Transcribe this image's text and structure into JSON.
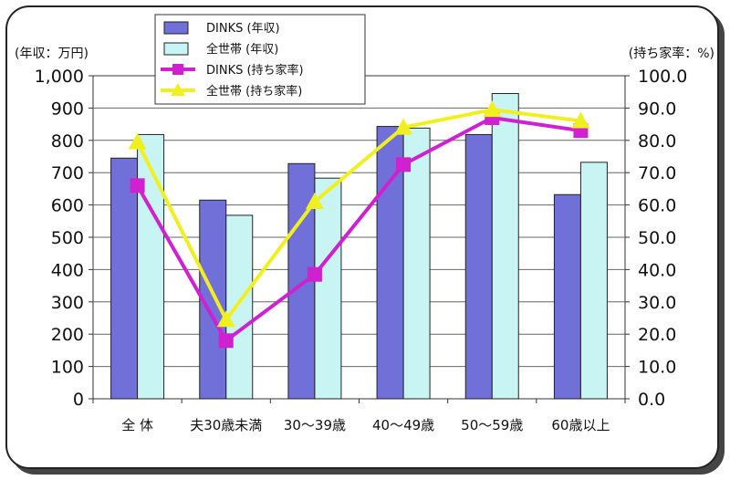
{
  "chart_data": {
    "type": "bar",
    "categories": [
      "全 体",
      "夫30歳未満",
      "30～39歳",
      "40～49歳",
      "50～59歳",
      "60歳以上"
    ],
    "series": [
      {
        "name": "DINKS (年収)",
        "kind": "bar",
        "axis": "left",
        "color": "#7070d8",
        "values": [
          745,
          615,
          728,
          843,
          818,
          632
        ]
      },
      {
        "name": "全世帯 (年収)",
        "kind": "bar",
        "axis": "left",
        "color": "#c8f4f4",
        "values": [
          818,
          568,
          683,
          838,
          945,
          732
        ]
      },
      {
        "name": "DINKS (持ち家率)",
        "kind": "line",
        "axis": "right",
        "color": "#d020d0",
        "values": [
          66.0,
          18.0,
          38.5,
          72.5,
          87.0,
          83.0
        ]
      },
      {
        "name": "全世帯 (持ち家率)",
        "kind": "line",
        "axis": "right",
        "color": "#f0f020",
        "values": [
          79.5,
          24.5,
          61.0,
          84.0,
          89.5,
          86.0
        ]
      }
    ],
    "y_left": {
      "label": "(年収：万円)",
      "min": 0,
      "max": 1000,
      "ticks": [
        "0",
        "100",
        "200",
        "300",
        "400",
        "500",
        "600",
        "700",
        "800",
        "900",
        "1,000"
      ]
    },
    "y_right": {
      "label": "(持ち家率：%)",
      "min": 0,
      "max": 100,
      "ticks": [
        "0.0",
        "10.0",
        "20.0",
        "30.0",
        "40.0",
        "50.0",
        "60.0",
        "70.0",
        "80.0",
        "90.0",
        "100.0"
      ]
    },
    "grid": true,
    "legend_placement": "top-left"
  }
}
